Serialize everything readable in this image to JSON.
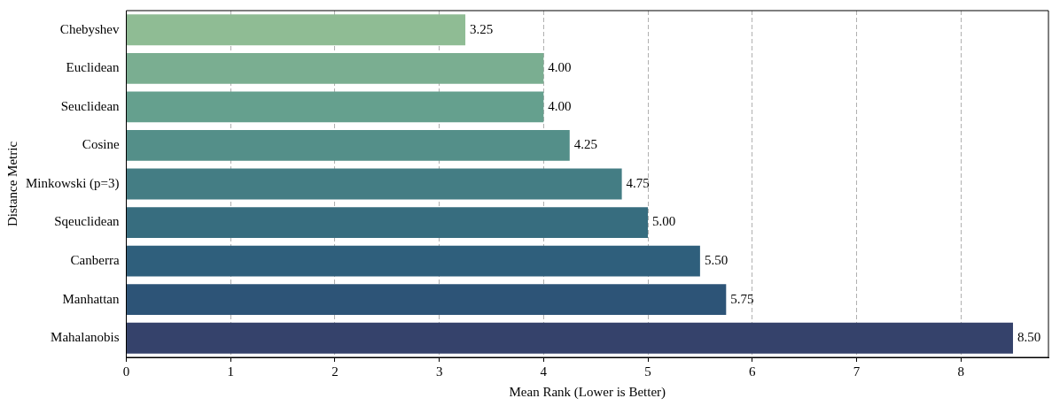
{
  "chart_data": {
    "type": "bar",
    "orientation": "horizontal",
    "xlabel": "Mean Rank (Lower is Better)",
    "ylabel": "Distance Metric",
    "categories": [
      "Chebyshev",
      "Euclidean",
      "Seuclidean",
      "Cosine",
      "Minkowski (p=3)",
      "Sqeuclidean",
      "Canberra",
      "Manhattan",
      "Mahalanobis"
    ],
    "values": [
      3.25,
      4.0,
      4.0,
      4.25,
      4.75,
      5.0,
      5.5,
      5.75,
      8.5
    ],
    "value_labels": [
      "3.25",
      "4.00",
      "4.00",
      "4.25",
      "4.75",
      "5.00",
      "5.50",
      "5.75",
      "8.50"
    ],
    "colors": [
      "#8fbc94",
      "#7aae91",
      "#65a08e",
      "#548f89",
      "#447d84",
      "#376d7f",
      "#2f5f7c",
      "#2d5477",
      "#35426b"
    ],
    "xlim": [
      0,
      8.84
    ],
    "xticks": [
      0,
      1,
      2,
      3,
      4,
      5,
      6,
      7,
      8
    ],
    "grid": "x",
    "legend": false
  }
}
